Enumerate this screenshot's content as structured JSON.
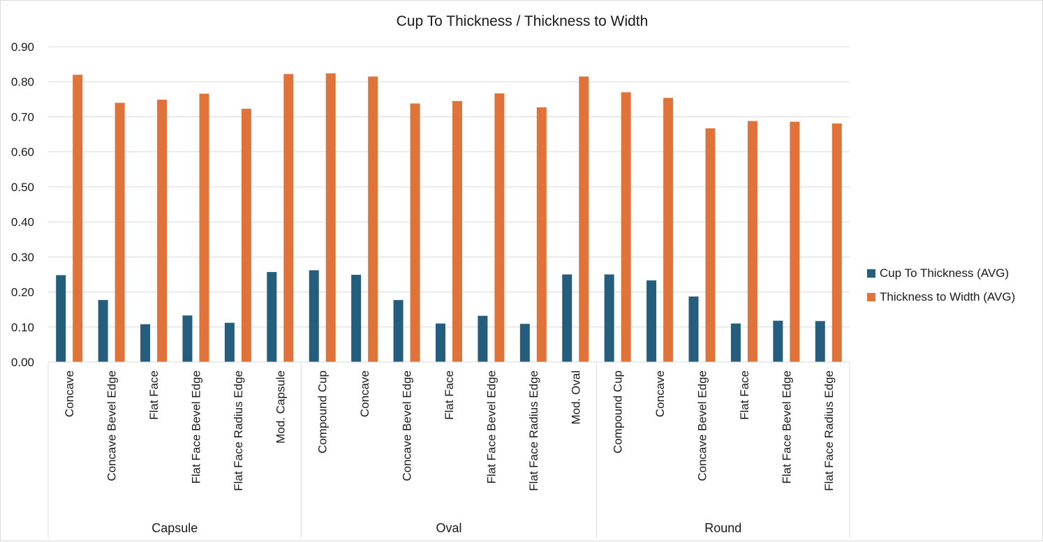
{
  "chart_data": {
    "type": "bar",
    "title": "Cup To Thickness  / Thickness to Width",
    "xlabel": "",
    "ylabel": "",
    "ylim": [
      0,
      0.9
    ],
    "y_ticks": [
      "0.00",
      "0.10",
      "0.20",
      "0.30",
      "0.40",
      "0.50",
      "0.60",
      "0.70",
      "0.80",
      "0.90"
    ],
    "grid": true,
    "legend_position": "right",
    "groups": [
      {
        "label": "Capsule",
        "categories": [
          "Concave",
          "Concave Bevel Edge",
          "Flat Face",
          "Flat Face Bevel Edge",
          "Flat Face Radius Edge",
          "Mod. Capsule"
        ]
      },
      {
        "label": "Oval",
        "categories": [
          "Compound Cup",
          "Concave",
          "Concave Bevel Edge",
          "Flat Face",
          "Flat Face Bevel Edge",
          "Flat Face Radius Edge",
          "Mod. Oval"
        ]
      },
      {
        "label": "Round",
        "categories": [
          "Compound Cup",
          "Concave",
          "Concave Bevel Edge",
          "Flat Face",
          "Flat Face Bevel Edge",
          "Flat Face Radius Edge"
        ]
      }
    ],
    "series": [
      {
        "name": "Cup To Thickness (AVG)",
        "color": "#255e7d",
        "values": [
          0.248,
          0.177,
          0.108,
          0.133,
          0.112,
          0.257,
          0.262,
          0.249,
          0.177,
          0.11,
          0.132,
          0.109,
          0.25,
          0.25,
          0.233,
          0.187,
          0.11,
          0.118,
          0.117
        ]
      },
      {
        "name": "Thickness to Width (AVG)",
        "color": "#e07339",
        "values": [
          0.82,
          0.74,
          0.749,
          0.766,
          0.723,
          0.822,
          0.824,
          0.815,
          0.738,
          0.745,
          0.767,
          0.727,
          0.815,
          0.77,
          0.754,
          0.667,
          0.688,
          0.686,
          0.681
        ]
      }
    ]
  }
}
